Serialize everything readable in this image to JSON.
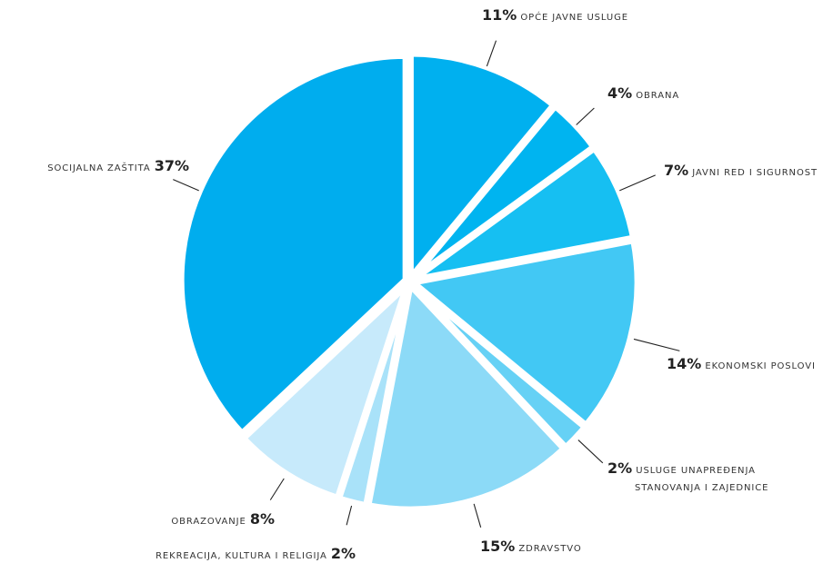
{
  "chart_data": {
    "type": "pie",
    "slices": [
      {
        "label": "OPĆE JAVNE USLUGE",
        "value": 11,
        "value_text": "11%",
        "color": "#00b0ef"
      },
      {
        "label": "OBRANA",
        "value": 4,
        "value_text": "4%",
        "color": "#00b4f0"
      },
      {
        "label": "JAVNI RED I SIGURNOST",
        "value": 7,
        "value_text": "7%",
        "color": "#16bff2"
      },
      {
        "label": "EKONOMSKI POSLOVI",
        "value": 14,
        "value_text": "14%",
        "color": "#42c8f4"
      },
      {
        "label": "USLUGE UNAPREĐENJA",
        "label_line2": "STANOVANJA I ZAJEDNICE",
        "value": 2,
        "value_text": "2%",
        "color": "#66d1f5"
      },
      {
        "label": "ZDRAVSTVO",
        "value": 15,
        "value_text": "15%",
        "color": "#8cdaf7"
      },
      {
        "label": "REKREACIJA, KULTURA I RELIGIJA",
        "value": 2,
        "value_text": "2%",
        "color": "#a9e2f9"
      },
      {
        "label": "OBRAZOVANJE",
        "value": 8,
        "value_text": "8%",
        "color": "#c7eafb"
      },
      {
        "label": "SOCIJALNA ZAŠTITA",
        "value": 37,
        "value_text": "37%",
        "color": "#00adee"
      }
    ]
  }
}
